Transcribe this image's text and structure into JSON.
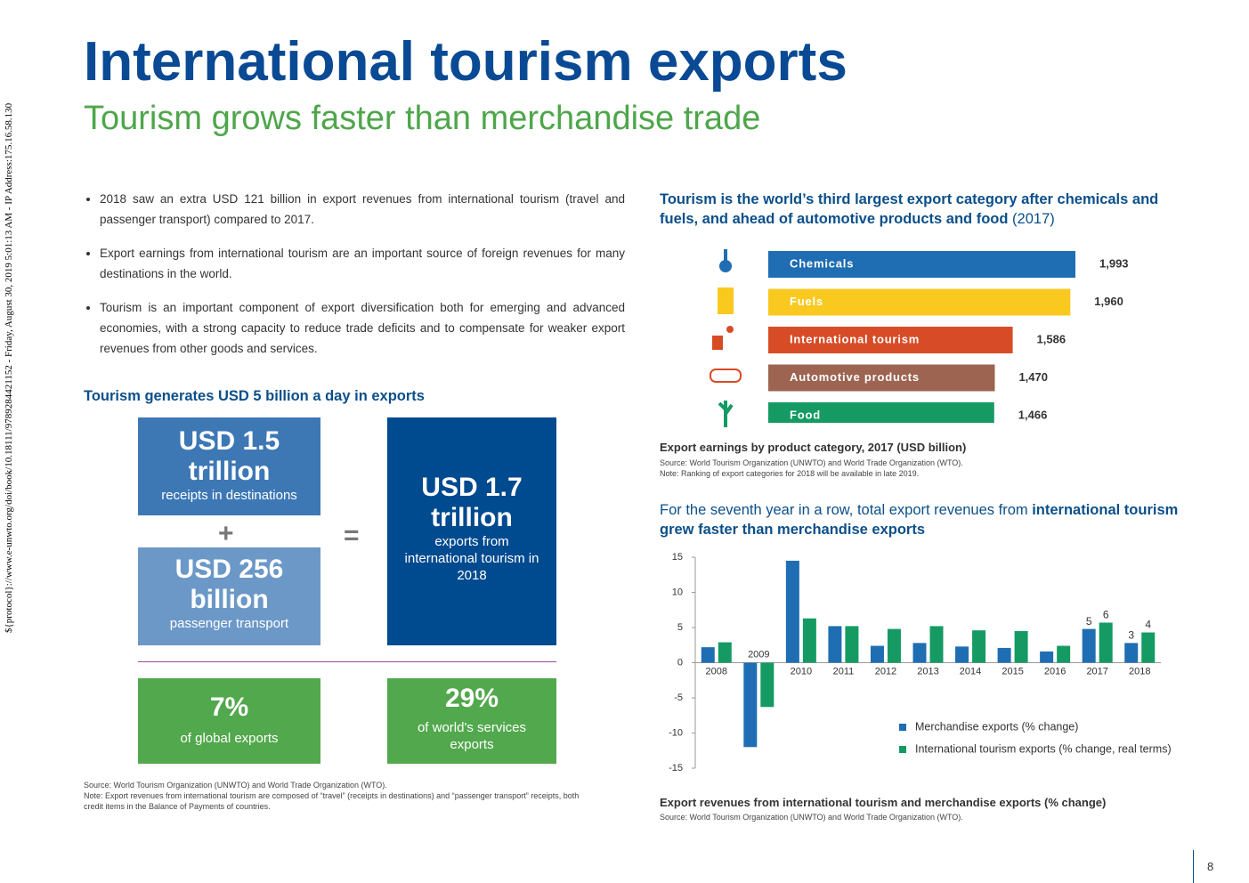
{
  "title": "International tourism exports",
  "subtitle": "Tourism grows faster than merchandise trade",
  "side_text": "${protocol}://www.e-unwto.org/doi/book/10.18111/9789284421152 - Friday, August 30, 2019 5:01:13 AM - IP Address:175.16.58.130",
  "bullets": [
    "2018 saw an extra USD 121 billion in export revenues from international tourism (travel and passenger transport) compared to 2017.",
    "Export earnings from international tourism are an important source of foreign revenues for many destinations in the world.",
    "Tourism is an important component of export diversification both for emerging and advanced economies, with a strong capacity to reduce trade deficits and to compensate for weaker export revenues from other goods and services."
  ],
  "infographic": {
    "heading": "Tourism generates USD 5 billion a day in exports",
    "receipts": {
      "value": "USD 1.5 trillion",
      "label": "receipts in destinations"
    },
    "plus": "+",
    "transport": {
      "value": "USD 256 billion",
      "label": "passenger transport"
    },
    "equals": "=",
    "total": {
      "value": "USD 1.7 trillion",
      "label": "exports from international tourism in 2018"
    },
    "global_share": {
      "value": "7%",
      "label": "of global exports"
    },
    "services_share": {
      "value": "29%",
      "label": "of world's services exports"
    },
    "source": "Source: World Tourism Organization (UNWTO) and World Trade Organization (WTO).",
    "note": "Note: Export revenues from international tourism are composed of “travel” (receipts in destinations) and “passenger transport” receipts, both credit items in the Balance of Payments of countries."
  },
  "page_number": "8",
  "chart_data": [
    {
      "type": "hbar",
      "title": "Tourism is the world’s third largest export category after chemicals and fuels, and ahead of automotive products and food",
      "title_suffix": "(2017)",
      "categories": [
        "Chemicals",
        "Fuels",
        "International tourism",
        "Automotive products",
        "Food"
      ],
      "values": [
        1993,
        1960,
        1586,
        1470,
        1466
      ],
      "value_labels": [
        "1,993",
        "1,960",
        "1,586",
        "1,470",
        "1,466"
      ],
      "colors": [
        "#1f6db2",
        "#f9c920",
        "#d84b27",
        "#9c6451",
        "#159a63"
      ],
      "caption": "Export earnings by product category, 2017 (USD billion)",
      "source": "Source: World Tourism Organization (UNWTO) and World Trade Organization (WTO).",
      "note": "Note: Ranking of export categories for 2018 will be available in late 2019."
    },
    {
      "type": "bar",
      "title": "For the seventh year in a row, total export revenues from",
      "title_bold": "international tourism grew faster than merchandise exports",
      "categories": [
        "2008",
        "2009",
        "2010",
        "2011",
        "2012",
        "2013",
        "2014",
        "2015",
        "2016",
        "2017",
        "2018"
      ],
      "series": [
        {
          "name": "Merchandise exports (% change)",
          "color": "#1f6db2",
          "values": [
            2.2,
            -12,
            14.5,
            5.2,
            2.4,
            2.8,
            2.3,
            2.1,
            1.6,
            4.8,
            2.8
          ],
          "value_labels": [
            null,
            null,
            null,
            null,
            null,
            null,
            null,
            null,
            null,
            "5",
            "3"
          ]
        },
        {
          "name": "International tourism exports (% change, real terms)",
          "color": "#159a63",
          "values": [
            2.9,
            -6.3,
            6.3,
            5.2,
            4.8,
            5.2,
            4.6,
            4.5,
            2.4,
            5.7,
            4.3
          ],
          "value_labels": [
            null,
            null,
            null,
            null,
            null,
            null,
            null,
            null,
            null,
            "6",
            "4"
          ]
        }
      ],
      "ylim": [
        -15,
        15
      ],
      "yticks": [
        -15,
        -10,
        -5,
        0,
        5,
        10,
        15
      ],
      "grid": false,
      "caption": "Export revenues from international tourism and merchandise exports (% change)",
      "source": "Source: World Tourism Organization (UNWTO) and World Trade Organization (WTO)."
    }
  ]
}
